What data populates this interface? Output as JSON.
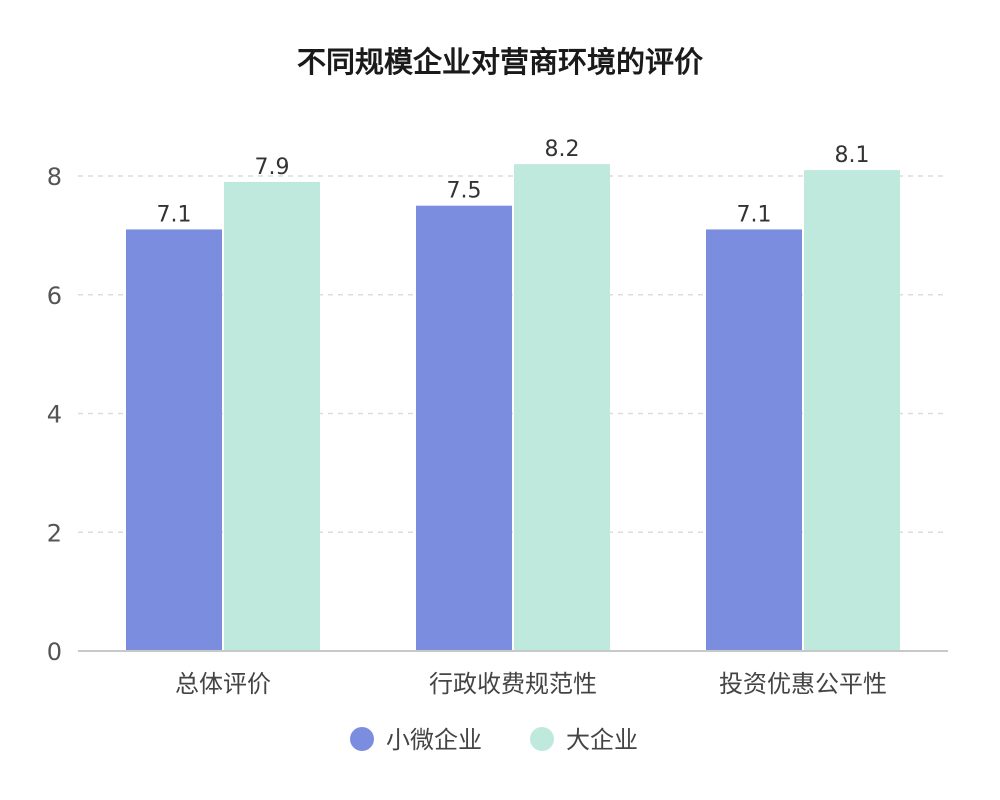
{
  "chart_data": {
    "type": "bar",
    "title": "不同规模企业对营商环境的评价",
    "categories": [
      "总体评价",
      "行政收费规范性",
      "投资优惠公平性"
    ],
    "series": [
      {
        "name": "小微企业",
        "values": [
          7.1,
          7.5,
          7.1
        ],
        "color": "#7b8ddf"
      },
      {
        "name": "大企业",
        "values": [
          7.9,
          8.2,
          8.1
        ],
        "color": "#bfe9dd"
      }
    ],
    "xlabel": "",
    "ylabel": "",
    "ylim": [
      0,
      8.8
    ],
    "yticks": [
      0,
      2,
      4,
      6,
      8
    ],
    "grid": true,
    "legend": "bottom-center",
    "data_labels": true
  }
}
